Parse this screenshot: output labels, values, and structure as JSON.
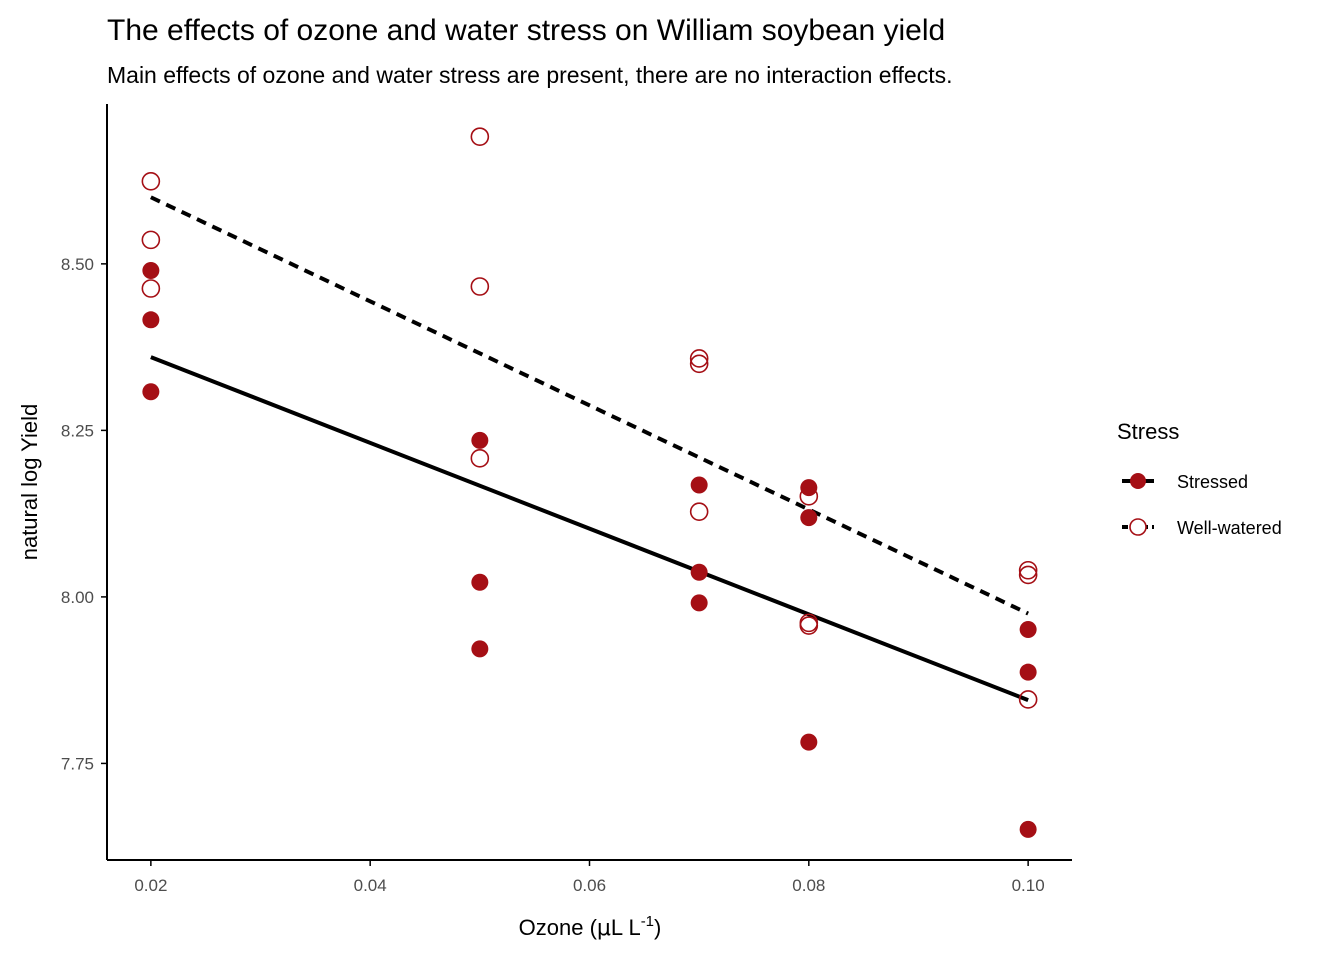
{
  "chart_data": {
    "type": "scatter",
    "title": "The effects of ozone and water stress on William soybean yield",
    "subtitle": "Main effects of ozone and water stress are present, there are no interaction effects.",
    "xlabel": {
      "prefix": "Ozone (",
      "mu": "μ",
      "unit_main": "L L",
      "superscript": "-1",
      "suffix": ")"
    },
    "ylabel": "natural log Yield",
    "xlim": [
      0.016,
      0.104
    ],
    "ylim": [
      7.605,
      8.74
    ],
    "x_ticks": [
      0.02,
      0.04,
      0.06,
      0.08,
      0.1
    ],
    "x_tick_labels": [
      "0.02",
      "0.04",
      "0.06",
      "0.08",
      "0.10"
    ],
    "y_ticks": [
      7.75,
      8.0,
      8.25,
      8.5
    ],
    "y_tick_labels": [
      "7.75",
      "8.00",
      "8.25",
      "8.50"
    ],
    "grid": false,
    "legend": {
      "title": "Stress",
      "position": "right"
    },
    "point_color": "#a50f15",
    "line_color": "#000000",
    "series": [
      {
        "name": "Stressed",
        "marker": "filled-circle",
        "line_style": "solid",
        "points": [
          {
            "x": 0.02,
            "y": 8.49
          },
          {
            "x": 0.02,
            "y": 8.416
          },
          {
            "x": 0.02,
            "y": 8.308
          },
          {
            "x": 0.05,
            "y": 8.235
          },
          {
            "x": 0.05,
            "y": 8.022
          },
          {
            "x": 0.05,
            "y": 7.922
          },
          {
            "x": 0.07,
            "y": 8.168
          },
          {
            "x": 0.07,
            "y": 8.037
          },
          {
            "x": 0.07,
            "y": 7.991
          },
          {
            "x": 0.08,
            "y": 8.164
          },
          {
            "x": 0.08,
            "y": 8.119
          },
          {
            "x": 0.08,
            "y": 7.782
          },
          {
            "x": 0.1,
            "y": 7.951
          },
          {
            "x": 0.1,
            "y": 7.887
          },
          {
            "x": 0.1,
            "y": 7.651
          }
        ],
        "fit": [
          {
            "x": 0.02,
            "y": 8.36
          },
          {
            "x": 0.1,
            "y": 7.845
          }
        ]
      },
      {
        "name": "Well-watered",
        "marker": "open-circle",
        "line_style": "dashed",
        "points": [
          {
            "x": 0.02,
            "y": 8.624
          },
          {
            "x": 0.02,
            "y": 8.536
          },
          {
            "x": 0.02,
            "y": 8.463
          },
          {
            "x": 0.05,
            "y": 8.691
          },
          {
            "x": 0.05,
            "y": 8.466
          },
          {
            "x": 0.05,
            "y": 8.208
          },
          {
            "x": 0.07,
            "y": 8.358
          },
          {
            "x": 0.07,
            "y": 8.35
          },
          {
            "x": 0.07,
            "y": 8.128
          },
          {
            "x": 0.08,
            "y": 8.151
          },
          {
            "x": 0.08,
            "y": 7.961
          },
          {
            "x": 0.08,
            "y": 7.957
          },
          {
            "x": 0.1,
            "y": 8.04
          },
          {
            "x": 0.1,
            "y": 8.033
          },
          {
            "x": 0.1,
            "y": 7.846
          }
        ],
        "fit": [
          {
            "x": 0.02,
            "y": 8.6
          },
          {
            "x": 0.1,
            "y": 7.975
          }
        ]
      }
    ]
  }
}
